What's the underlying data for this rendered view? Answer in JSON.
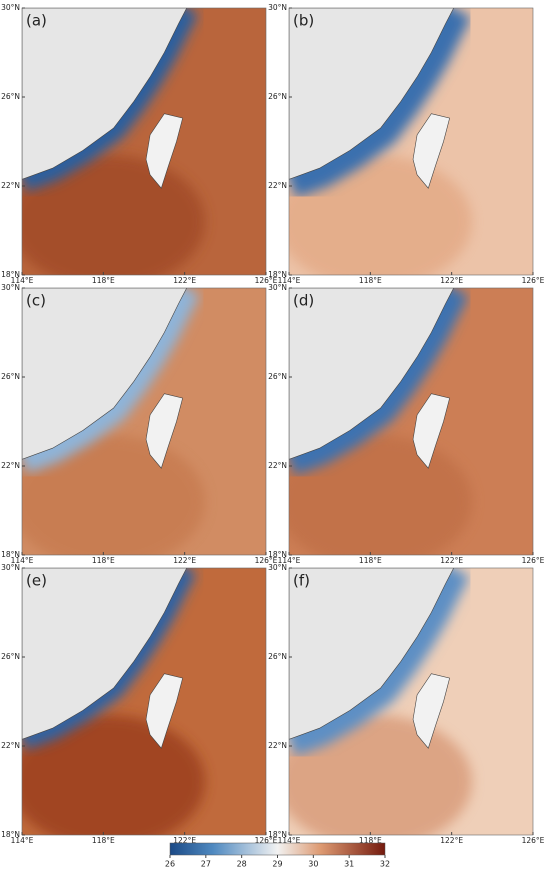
{
  "panels": [
    {
      "label": "(a)"
    },
    {
      "label": "(b)"
    },
    {
      "label": "(c)"
    },
    {
      "label": "(d)"
    },
    {
      "label": "(e)"
    },
    {
      "label": "(f)"
    }
  ],
  "lon_range": [
    114,
    126
  ],
  "lat_range": [
    18,
    30
  ],
  "lon_ticks": [
    {
      "value": 114,
      "label": "114°E"
    },
    {
      "value": 118,
      "label": "118°E"
    },
    {
      "value": 122,
      "label": "122°E"
    },
    {
      "value": 126,
      "label": "126°E"
    }
  ],
  "lat_ticks": [
    {
      "value": 30,
      "label": "30°N"
    },
    {
      "value": 26,
      "label": "26°N"
    },
    {
      "value": 22,
      "label": "22°N"
    },
    {
      "value": 18,
      "label": "18°N"
    }
  ],
  "colorbar": {
    "range": [
      26,
      32
    ],
    "ticks": [
      26,
      27,
      28,
      29,
      30,
      31,
      32
    ]
  }
}
